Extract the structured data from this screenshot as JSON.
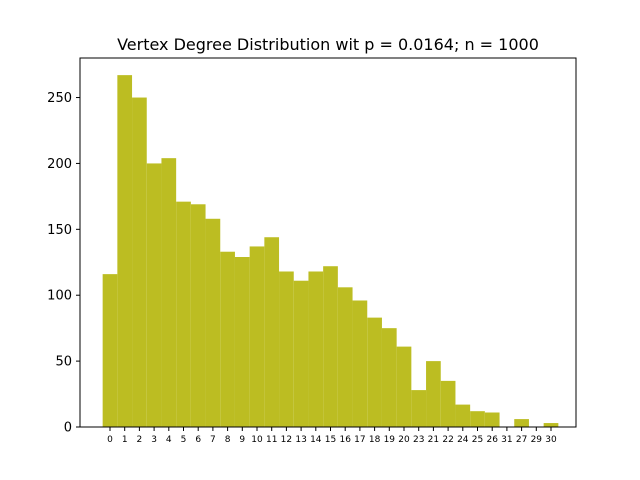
{
  "chart_data": {
    "type": "bar",
    "title": "Vertex Degree Distribution wit p = 0.0164; n = 1000",
    "xlabel": "",
    "ylabel": "",
    "categories": [
      "0",
      "1",
      "2",
      "3",
      "4",
      "5",
      "6",
      "7",
      "8",
      "9",
      "10",
      "11",
      "12",
      "13",
      "14",
      "15",
      "16",
      "17",
      "18",
      "19",
      "20",
      "23",
      "21",
      "22",
      "24",
      "25",
      "26",
      "31",
      "27",
      "29",
      "30"
    ],
    "values": [
      116,
      267,
      250,
      200,
      204,
      171,
      169,
      158,
      133,
      129,
      137,
      144,
      118,
      111,
      118,
      122,
      106,
      96,
      83,
      75,
      61,
      28,
      50,
      35,
      17,
      12,
      11,
      0,
      6,
      0,
      3
    ],
    "ylim": [
      0,
      280
    ],
    "yticks": [
      0,
      50,
      100,
      150,
      200,
      250
    ],
    "bar_color": "#bcbd22",
    "grid": false,
    "legend": "none"
  }
}
